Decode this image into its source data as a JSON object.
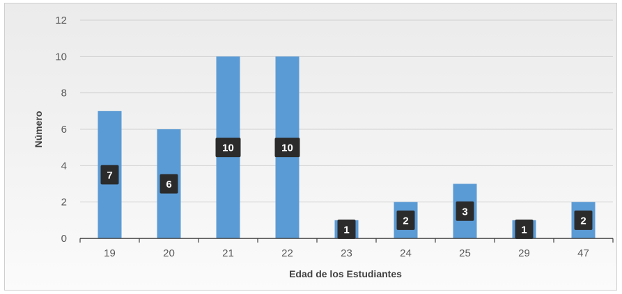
{
  "chart_data": {
    "type": "bar",
    "title": "",
    "xlabel": "Edad de los Estudiantes",
    "ylabel": "Número",
    "categories": [
      "19",
      "20",
      "21",
      "22",
      "23",
      "24",
      "25",
      "29",
      "47"
    ],
    "values": [
      7,
      6,
      10,
      10,
      1,
      2,
      3,
      1,
      2
    ],
    "data_labels": [
      "7",
      "6",
      "10",
      "10",
      "1",
      "2",
      "3",
      "1",
      "2"
    ],
    "ylim": [
      0,
      12
    ],
    "yticks": [
      "0",
      "2",
      "4",
      "6",
      "8",
      "10",
      "12"
    ],
    "grid": true,
    "legend": "none",
    "colors": {
      "bar": "#5b9bd5",
      "label_bg": "#2b2b2b",
      "label_text": "#ffffff",
      "grid": "#d0d0d0",
      "axis": "#404040"
    }
  }
}
